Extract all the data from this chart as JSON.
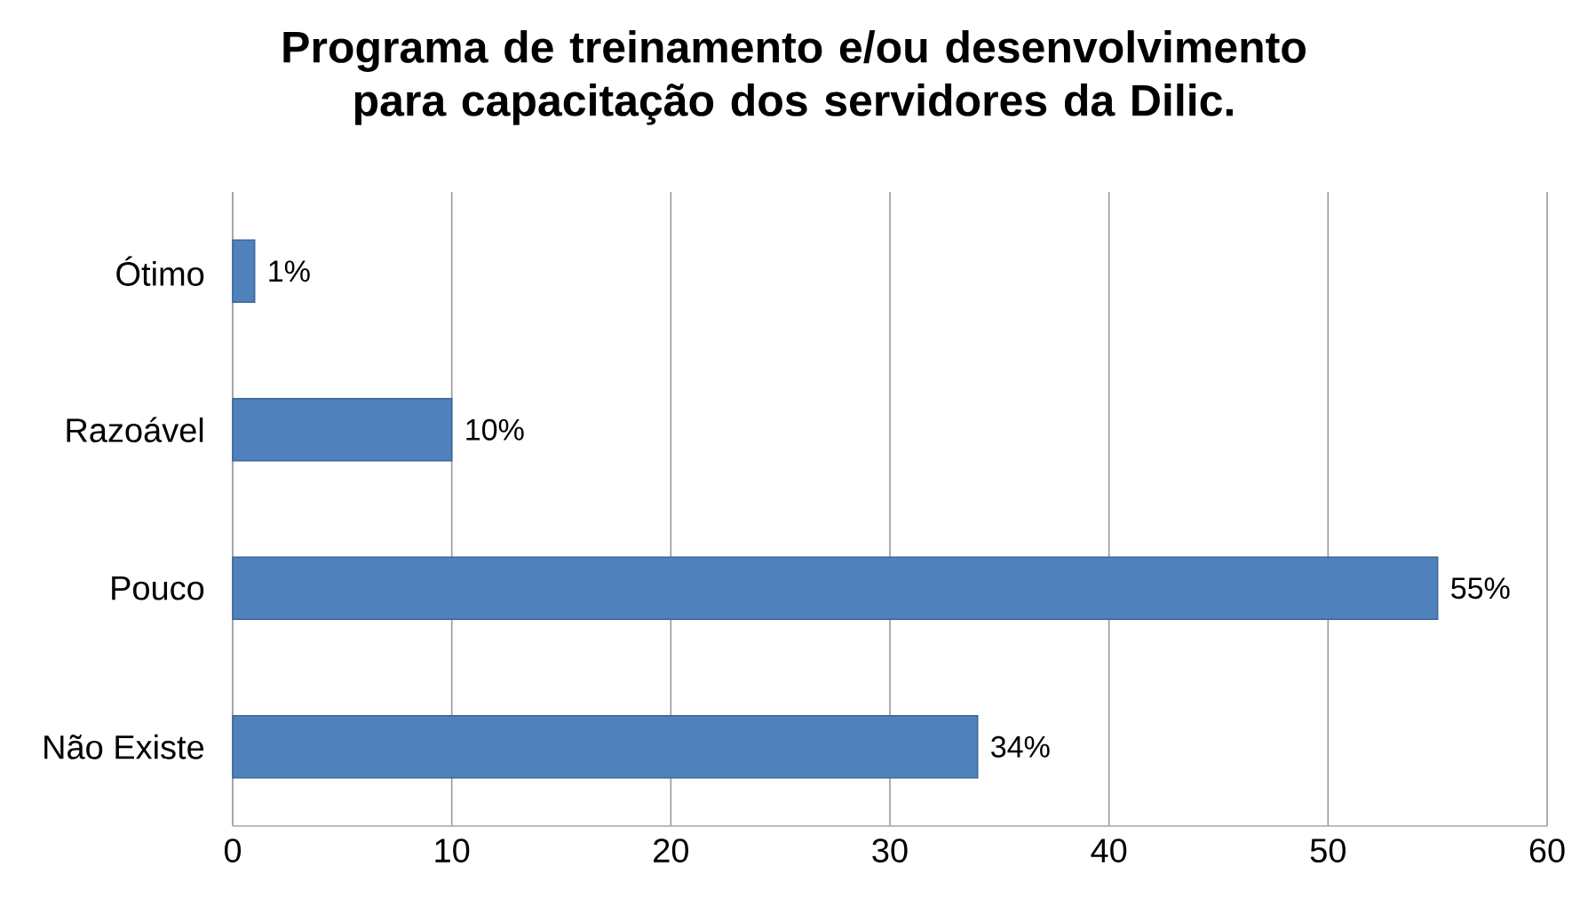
{
  "chart_data": {
    "type": "bar",
    "orientation": "horizontal",
    "title": "Programa de treinamento e/ou desenvolvimento para capacitação dos servidores da Dilic.",
    "categories": [
      "Ótimo",
      "Razoável",
      "Pouco",
      "Não Existe"
    ],
    "values": [
      1,
      10,
      55,
      34
    ],
    "value_labels": [
      "1%",
      "10%",
      "55%",
      "34%"
    ],
    "color": "#4f81bd",
    "xlim": [
      0,
      60
    ],
    "xticks": [
      0,
      10,
      20,
      30,
      40,
      50,
      60
    ],
    "grid": "x"
  }
}
